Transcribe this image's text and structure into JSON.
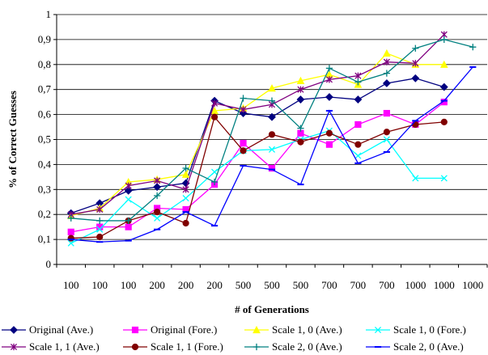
{
  "chart_data": {
    "type": "line",
    "title": "",
    "xlabel": "# of Generations",
    "ylabel": "% of Correct Guesses",
    "categories": [
      "100",
      "100",
      "100",
      "200",
      "200",
      "200",
      "500",
      "500",
      "500",
      "700",
      "700",
      "700",
      "1000",
      "1000",
      "1000"
    ],
    "ylim": [
      0,
      1
    ],
    "yticks": [
      0,
      0.1,
      0.2,
      0.3,
      0.4,
      0.5,
      0.6,
      0.7,
      0.8,
      0.9,
      1
    ],
    "ytick_labels": [
      "0",
      "0,1",
      "0,2",
      "0,3",
      "0,4",
      "0,5",
      "0,6",
      "0,7",
      "0,8",
      "0,9",
      "1"
    ],
    "grid": "horizontal",
    "legend_position": "bottom",
    "series": [
      {
        "name": "Original (Ave.)",
        "color": "#000080",
        "marker": "diamond",
        "values": [
          0.205,
          0.245,
          0.295,
          0.31,
          0.325,
          0.655,
          0.605,
          0.59,
          0.66,
          0.67,
          0.66,
          0.725,
          0.745,
          0.71,
          null
        ]
      },
      {
        "name": "Original (Fore.)",
        "color": "#ff00ff",
        "marker": "square",
        "values": [
          0.13,
          0.15,
          0.15,
          0.225,
          0.22,
          0.32,
          0.485,
          0.385,
          0.525,
          0.48,
          0.56,
          0.605,
          0.56,
          0.65,
          null
        ]
      },
      {
        "name": "Scale 1, 0 (Ave.)",
        "color": "#ffff00",
        "marker": "triangle",
        "values": [
          0.195,
          0.225,
          0.33,
          0.34,
          0.36,
          0.615,
          0.625,
          0.705,
          0.735,
          0.76,
          0.72,
          0.845,
          0.8,
          0.8,
          null
        ]
      },
      {
        "name": "Scale 1, 0 (Fore.)",
        "color": "#00ffff",
        "marker": "x",
        "values": [
          0.085,
          0.14,
          0.26,
          0.185,
          0.265,
          0.37,
          0.455,
          0.46,
          0.5,
          0.535,
          0.435,
          0.5,
          0.345,
          0.345,
          null
        ]
      },
      {
        "name": "Scale 1, 1 (Ave.)",
        "color": "#800080",
        "marker": "star",
        "values": [
          0.2,
          0.22,
          0.315,
          0.335,
          0.3,
          0.645,
          0.62,
          0.64,
          0.7,
          0.74,
          0.755,
          0.81,
          0.805,
          0.92,
          null
        ]
      },
      {
        "name": "Scale 1, 1 (Fore.)",
        "color": "#800000",
        "marker": "circle",
        "values": [
          0.105,
          0.11,
          0.175,
          0.21,
          0.165,
          0.59,
          0.455,
          0.52,
          0.49,
          0.525,
          0.48,
          0.53,
          0.56,
          0.57,
          null
        ]
      },
      {
        "name": "Scale 2, 0 (Ave.)",
        "color": "#008080",
        "marker": "plus",
        "values": [
          0.185,
          0.175,
          0.175,
          0.275,
          0.385,
          0.33,
          0.665,
          0.655,
          0.545,
          0.785,
          0.73,
          0.765,
          0.865,
          0.9,
          0.87
        ]
      },
      {
        "name": "Scale 2, 0 (Ave.)",
        "color": "#0000ff",
        "marker": "dash",
        "values": [
          0.1,
          0.09,
          0.095,
          0.14,
          0.21,
          0.155,
          0.395,
          0.38,
          0.32,
          0.615,
          0.405,
          0.45,
          0.575,
          0.655,
          0.79
        ]
      }
    ]
  }
}
